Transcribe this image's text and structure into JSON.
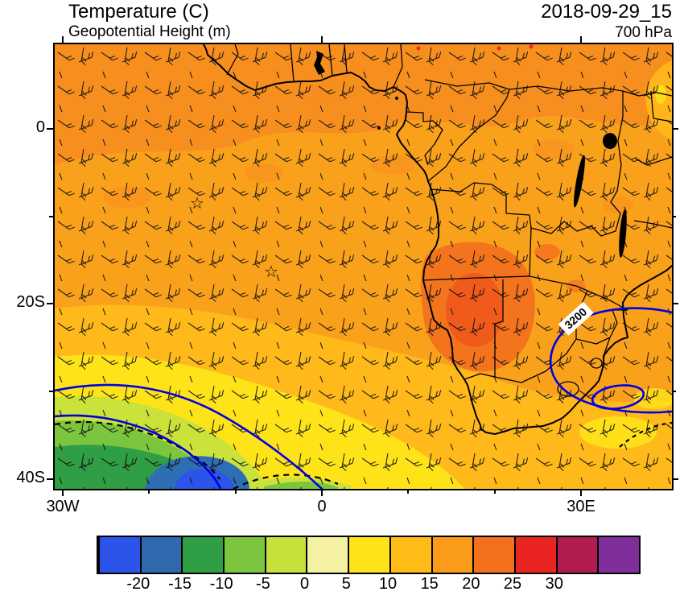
{
  "header": {
    "title": "Temperature (C)",
    "subtitle": "Geopotential Height (m)",
    "datetime": "2018-09-29_15",
    "level": "700 hPa"
  },
  "axes": {
    "y_labels": [
      "0",
      "20S",
      "40S"
    ],
    "x_labels": [
      "30W",
      "0",
      "30E"
    ]
  },
  "map": {
    "height_contour_label": "3200",
    "contour_color": "#0000e0",
    "markers": [
      {
        "glyph": "☆"
      },
      {
        "glyph": "☆"
      }
    ]
  },
  "colorbar": {
    "colors": [
      "#2c54e8",
      "#3069ad",
      "#2f9e44",
      "#7cc63f",
      "#c7e03c",
      "#f5f1a3",
      "#ffe319",
      "#ffbc17",
      "#fb9b1a",
      "#f4701d",
      "#ea2420",
      "#b01c50",
      "#7e2f9a"
    ],
    "labels": [
      "-20",
      "-15",
      "-10",
      "-5",
      "0",
      "5",
      "10",
      "15",
      "20",
      "25",
      "30"
    ]
  },
  "chart_data": {
    "type": "heatmap",
    "subtype": "filled-contour-weather-map",
    "title": "Temperature (C)",
    "overlay_contours": "Geopotential Height (m)",
    "pressure_level": "700 hPa",
    "valid_time": "2018-09-29_15",
    "fill_variable": "Temperature",
    "fill_units": "C",
    "fill_level_boundaries": [
      -20,
      -15,
      -10,
      -5,
      0,
      5,
      10,
      15,
      20,
      25,
      30
    ],
    "fill_colors": [
      "#2c54e8",
      "#3069ad",
      "#2f9e44",
      "#7cc63f",
      "#c7e03c",
      "#f5f1a3",
      "#ffe319",
      "#ffbc17",
      "#fb9b1a",
      "#f4701d",
      "#ea2420",
      "#b01c50",
      "#7e2f9a"
    ],
    "contour_variable": "Geopotential Height",
    "contour_units": "m",
    "contour_labels": [
      "3200"
    ],
    "contour_color": "#0000e0",
    "wind_barbs": true,
    "x_axis": {
      "tick_labels": [
        "30W",
        "0",
        "30E"
      ]
    },
    "y_axis": {
      "tick_labels": [
        "0",
        "20S",
        "40S"
      ]
    },
    "markers": [
      {
        "symbol": "star",
        "approx_lon": "14W",
        "approx_lat": "8S"
      },
      {
        "symbol": "star",
        "approx_lon": "6W",
        "approx_lat": "16S"
      }
    ],
    "features": [
      "warm core 20-25 C over Angola/Namibia",
      "cold pool below -15 C in far southwest corner",
      "closed geopotential height contour (3200 m) over South Africa",
      "mostly 15-20 C across northern/central Africa"
    ],
    "legend_position": "bottom",
    "grid": false
  }
}
